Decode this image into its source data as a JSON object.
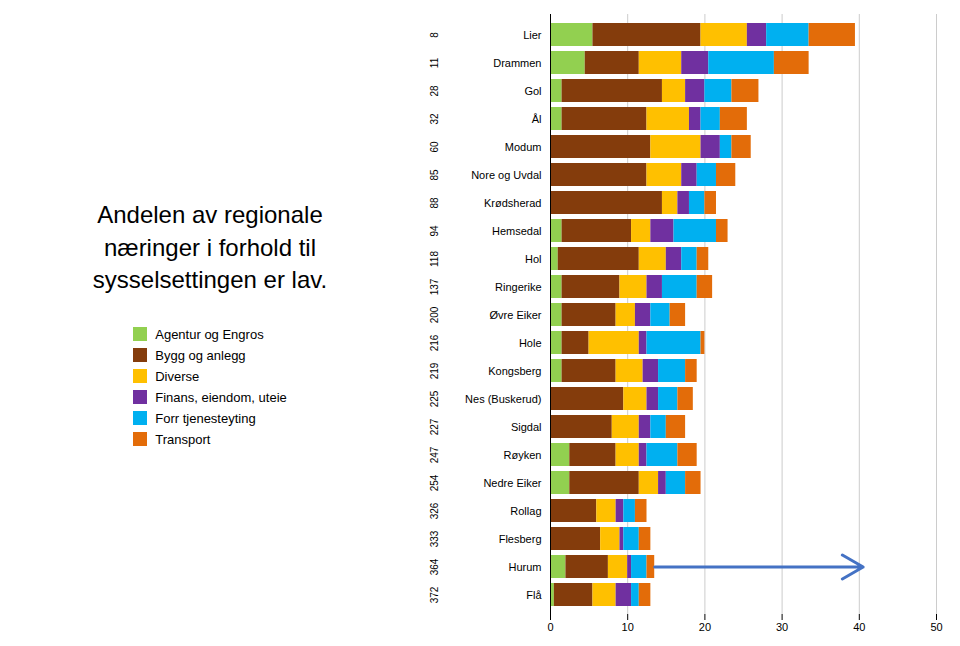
{
  "chart_data": {
    "type": "bar",
    "orientation": "horizontal",
    "stacked": true,
    "title": "Andelen av regionale\nnæringer i forhold til\nsysselsettingen er lav.",
    "categories": [
      "Lier",
      "Drammen",
      "Gol",
      "Ål",
      "Modum",
      "Nore og Uvdal",
      "Krødsherad",
      "Hemsedal",
      "Hol",
      "Ringerike",
      "Øvre Eiker",
      "Hole",
      "Kongsberg",
      "Nes (Buskerud)",
      "Sigdal",
      "Røyken",
      "Nedre Eiker",
      "Rollag",
      "Flesberg",
      "Hurum",
      "Flå"
    ],
    "series": [
      {
        "name": "Agentur og Engros",
        "color": "#92d050",
        "values": [
          5.5,
          4.5,
          1.5,
          1.5,
          0.0,
          0.0,
          0.0,
          1.5,
          1.0,
          1.5,
          1.5,
          1.5,
          1.5,
          0.0,
          0.0,
          2.5,
          2.5,
          0.0,
          0.0,
          2.0,
          0.5
        ]
      },
      {
        "name": "Bygg og anlegg",
        "color": "#843c0c",
        "values": [
          14.0,
          7.0,
          13.0,
          11.0,
          13.0,
          12.5,
          14.5,
          9.0,
          10.5,
          7.5,
          7.0,
          3.5,
          7.0,
          9.5,
          8.0,
          6.0,
          9.0,
          6.0,
          6.5,
          5.5,
          5.0
        ]
      },
      {
        "name": "Diverse",
        "color": "#ffc000",
        "values": [
          6.0,
          5.5,
          3.0,
          5.5,
          6.5,
          4.5,
          2.0,
          2.5,
          3.5,
          3.5,
          2.5,
          6.5,
          3.5,
          3.0,
          3.5,
          3.0,
          2.5,
          2.5,
          2.5,
          2.5,
          3.0
        ]
      },
      {
        "name": "Finans, eiendom, uteie",
        "color": "#7030a0",
        "values": [
          2.5,
          3.5,
          2.5,
          1.5,
          2.5,
          2.0,
          1.5,
          3.0,
          2.0,
          2.0,
          2.0,
          1.0,
          2.0,
          1.5,
          1.5,
          1.0,
          1.0,
          1.0,
          0.5,
          0.5,
          2.0
        ]
      },
      {
        "name": "Forr tjenesteyting",
        "color": "#00b0f0",
        "values": [
          5.5,
          8.5,
          3.5,
          2.5,
          1.5,
          2.5,
          2.0,
          5.5,
          2.0,
          4.5,
          2.5,
          7.0,
          3.5,
          2.5,
          2.0,
          4.0,
          2.5,
          1.5,
          2.0,
          2.0,
          1.0
        ]
      },
      {
        "name": "Transport",
        "color": "#e36c09",
        "values": [
          6.0,
          4.5,
          3.5,
          3.5,
          2.5,
          2.5,
          1.5,
          1.5,
          1.5,
          2.0,
          2.0,
          0.5,
          1.5,
          2.0,
          2.5,
          2.5,
          2.0,
          1.5,
          1.5,
          1.0,
          1.5
        ]
      }
    ],
    "xlim": [
      0,
      50
    ],
    "xticks": [
      0,
      10,
      20,
      30,
      40,
      50
    ],
    "grid": true,
    "legend": "left",
    "annotations": [
      {
        "type": "text",
        "category": "Lier",
        "text": "8"
      },
      {
        "type": "text",
        "category": "Drammen",
        "text": "11"
      },
      {
        "type": "text",
        "category": "Gol",
        "text": "28"
      },
      {
        "type": "text",
        "category": "Ål",
        "text": "32"
      },
      {
        "type": "text",
        "category": "Modum",
        "text": "60"
      },
      {
        "type": "text",
        "category": "Nore og Uvdal",
        "text": "85"
      },
      {
        "type": "text",
        "category": "Krødsherad",
        "text": "88"
      },
      {
        "type": "text",
        "category": "Hemsedal",
        "text": "94"
      },
      {
        "type": "text",
        "category": "Hol",
        "text": "118"
      },
      {
        "type": "text",
        "category": "Ringerike",
        "text": "137"
      },
      {
        "type": "text",
        "category": "Øvre Eiker",
        "text": "200"
      },
      {
        "type": "text",
        "category": "Hole",
        "text": "216"
      },
      {
        "type": "text",
        "category": "Kongsberg",
        "text": "219"
      },
      {
        "type": "text",
        "category": "Nes (Buskerud)",
        "text": "225"
      },
      {
        "type": "text",
        "category": "Sigdal",
        "text": "227"
      },
      {
        "type": "text",
        "category": "Røyken",
        "text": "247"
      },
      {
        "type": "text",
        "category": "Nedre Eiker",
        "text": "254"
      },
      {
        "type": "text",
        "category": "Rollag",
        "text": "326"
      },
      {
        "type": "text",
        "category": "Flesberg",
        "text": "333"
      },
      {
        "type": "text",
        "category": "Hurum",
        "text": "364"
      },
      {
        "type": "text",
        "category": "Flå",
        "text": "372"
      },
      {
        "type": "arrow",
        "category": "Hurum",
        "from": 13.5,
        "to": 40.5,
        "color": "#4472c4"
      }
    ]
  }
}
